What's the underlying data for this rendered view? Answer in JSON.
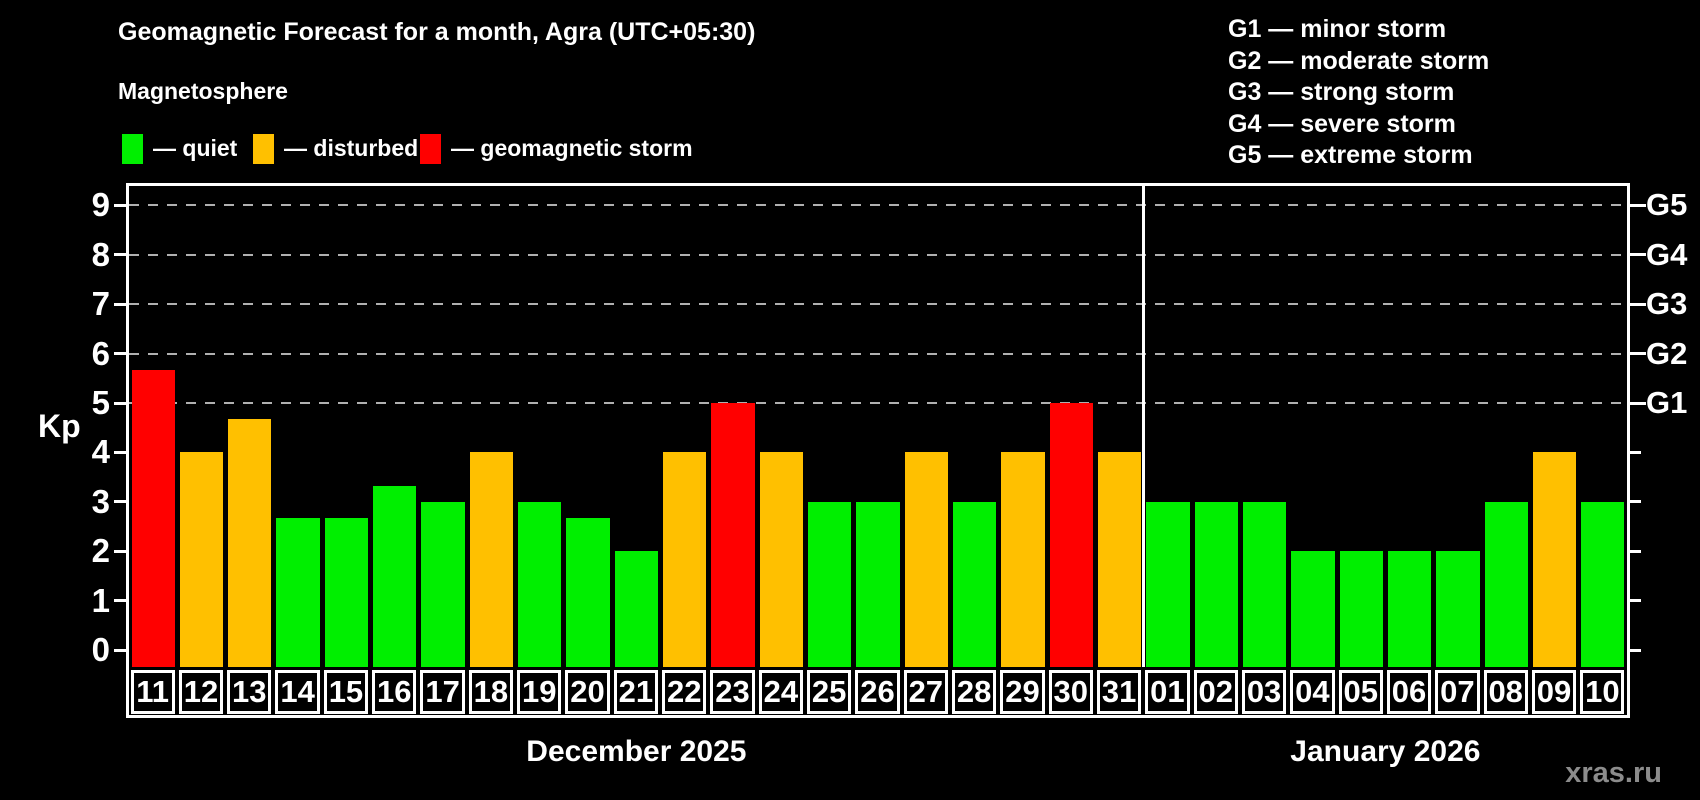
{
  "header": {
    "title": "Geomagnetic Forecast for a month, Agra (UTC+05:30)",
    "subtitle": "Magnetosphere",
    "legend": [
      {
        "key": "quiet",
        "label": "— quiet",
        "color": "#00ef00"
      },
      {
        "key": "disturbed",
        "label": "— disturbed",
        "color": "#ffc000"
      },
      {
        "key": "storm",
        "label": "— geomagnetic storm",
        "color": "#ff0000"
      }
    ],
    "g_legend": [
      "G1 — minor storm",
      "G2 — moderate storm",
      "G3 — strong storm",
      "G4 — severe storm",
      "G5 — extreme storm"
    ]
  },
  "chart_data": {
    "type": "bar",
    "ylabel": "Kp",
    "ylim": [
      0,
      9.4
    ],
    "grid": "dashed horizontal at storm levels only",
    "left_ticks": [
      0,
      1,
      2,
      3,
      4,
      5,
      6,
      7,
      8,
      9
    ],
    "g_levels": [
      {
        "kp": 5,
        "label": "G1"
      },
      {
        "kp": 6,
        "label": "G2"
      },
      {
        "kp": 7,
        "label": "G3"
      },
      {
        "kp": 8,
        "label": "G4"
      },
      {
        "kp": 9,
        "label": "G5"
      }
    ],
    "months": [
      {
        "label": "December 2025",
        "days": 21
      },
      {
        "label": "January 2026",
        "days": 10
      }
    ],
    "series": [
      {
        "day": "11",
        "kp": 5.67,
        "status": "storm"
      },
      {
        "day": "12",
        "kp": 4.0,
        "status": "disturbed"
      },
      {
        "day": "13",
        "kp": 4.67,
        "status": "disturbed"
      },
      {
        "day": "14",
        "kp": 2.67,
        "status": "quiet"
      },
      {
        "day": "15",
        "kp": 2.67,
        "status": "quiet"
      },
      {
        "day": "16",
        "kp": 3.33,
        "status": "quiet"
      },
      {
        "day": "17",
        "kp": 3.0,
        "status": "quiet"
      },
      {
        "day": "18",
        "kp": 4.0,
        "status": "disturbed"
      },
      {
        "day": "19",
        "kp": 3.0,
        "status": "quiet"
      },
      {
        "day": "20",
        "kp": 2.67,
        "status": "quiet"
      },
      {
        "day": "21",
        "kp": 2.0,
        "status": "quiet"
      },
      {
        "day": "22",
        "kp": 4.0,
        "status": "disturbed"
      },
      {
        "day": "23",
        "kp": 5.0,
        "status": "storm"
      },
      {
        "day": "24",
        "kp": 4.0,
        "status": "disturbed"
      },
      {
        "day": "25",
        "kp": 3.0,
        "status": "quiet"
      },
      {
        "day": "26",
        "kp": 3.0,
        "status": "quiet"
      },
      {
        "day": "27",
        "kp": 4.0,
        "status": "disturbed"
      },
      {
        "day": "28",
        "kp": 3.0,
        "status": "quiet"
      },
      {
        "day": "29",
        "kp": 4.0,
        "status": "disturbed"
      },
      {
        "day": "30",
        "kp": 5.0,
        "status": "storm"
      },
      {
        "day": "31",
        "kp": 4.0,
        "status": "disturbed"
      },
      {
        "day": "01",
        "kp": 3.0,
        "status": "quiet"
      },
      {
        "day": "02",
        "kp": 3.0,
        "status": "quiet"
      },
      {
        "day": "03",
        "kp": 3.0,
        "status": "quiet"
      },
      {
        "day": "04",
        "kp": 2.0,
        "status": "quiet"
      },
      {
        "day": "05",
        "kp": 2.0,
        "status": "quiet"
      },
      {
        "day": "06",
        "kp": 2.0,
        "status": "quiet"
      },
      {
        "day": "07",
        "kp": 2.0,
        "status": "quiet"
      },
      {
        "day": "08",
        "kp": 3.0,
        "status": "quiet"
      },
      {
        "day": "09",
        "kp": 4.0,
        "status": "disturbed"
      },
      {
        "day": "10",
        "kp": 3.0,
        "status": "quiet"
      }
    ]
  },
  "colors": {
    "quiet": "#00ef00",
    "disturbed": "#ffc000",
    "storm": "#ff0000",
    "axis": "#ffffff",
    "grid": "#b0b0b0",
    "watermark": "#8c8c8c",
    "background": "#000000"
  },
  "watermark": "xras.ru"
}
